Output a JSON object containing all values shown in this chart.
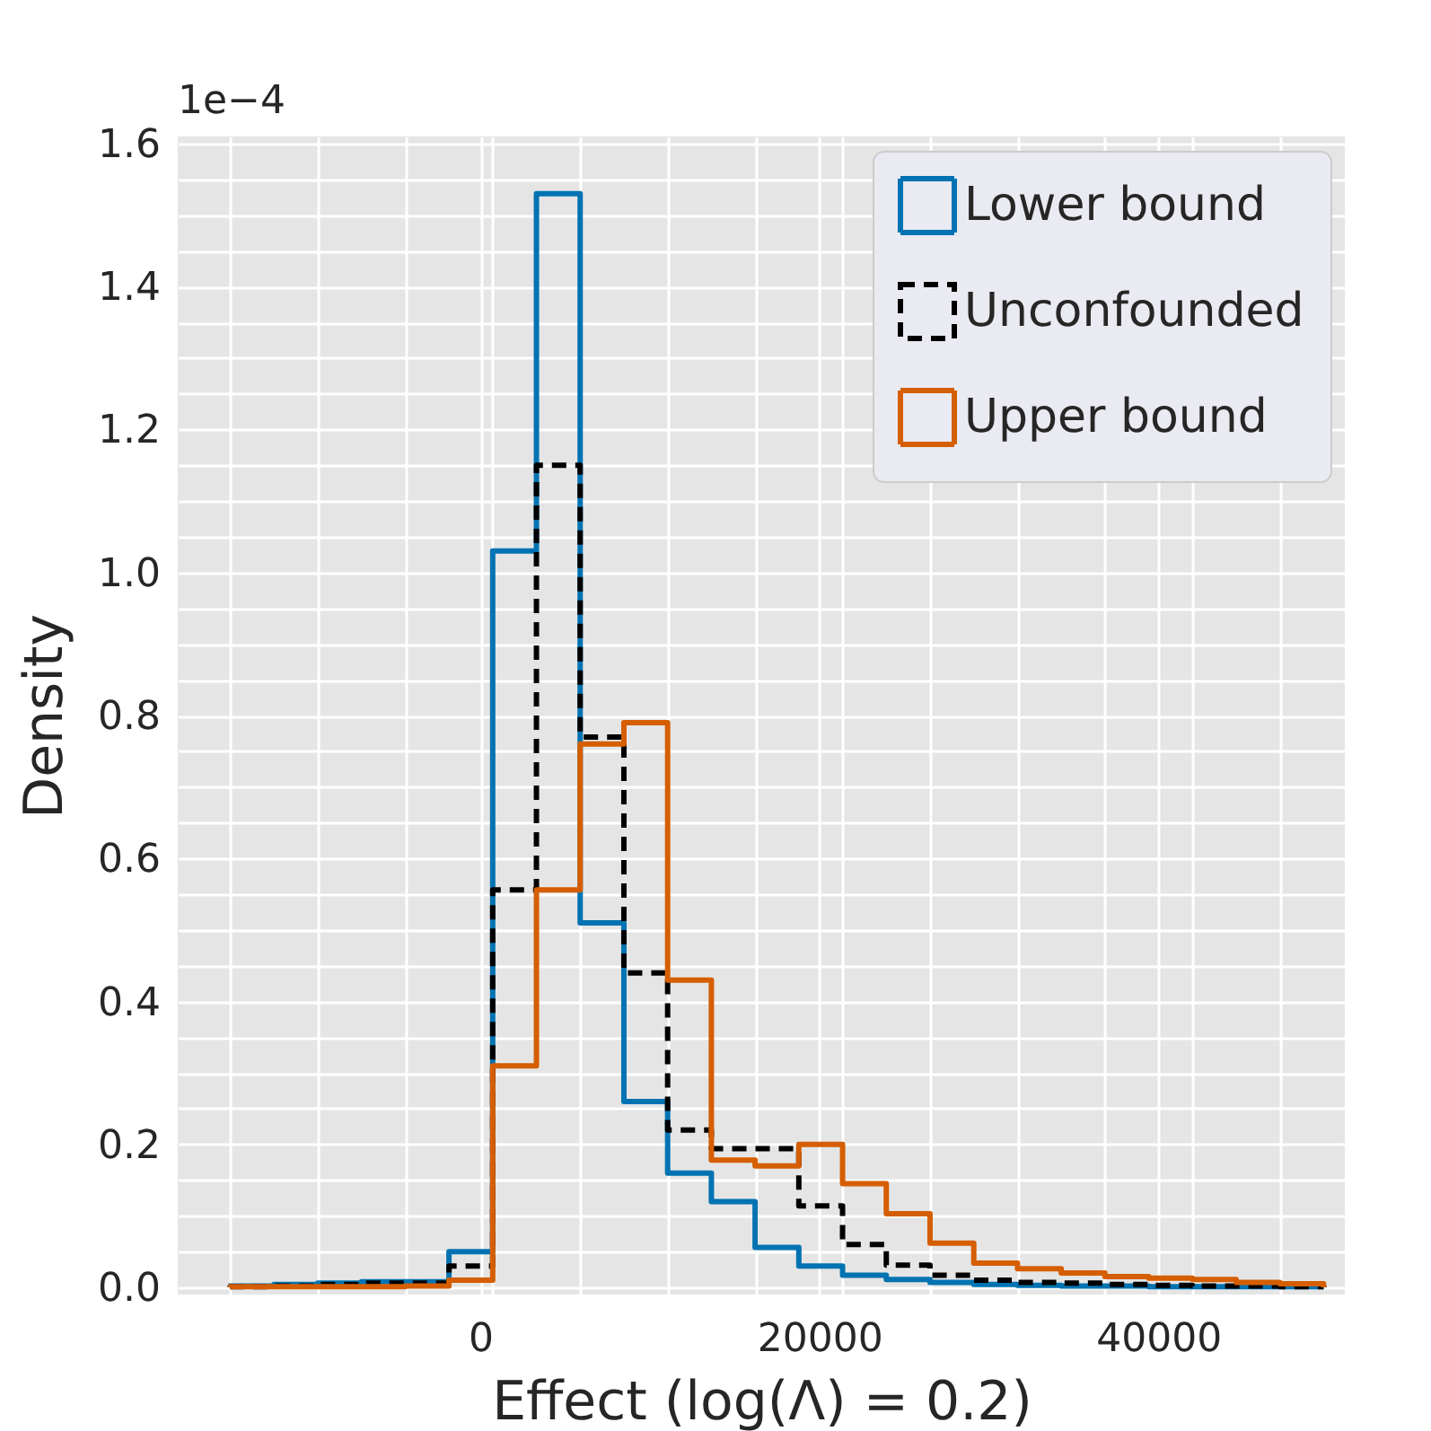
{
  "chart_data": {
    "type": "histogram",
    "xlabel": "Effect (log(Λ) = 0.2)",
    "ylabel": "Density",
    "annotations": [
      "1e−4"
    ],
    "bins": [
      -14750,
      -12170,
      -9590,
      -7010,
      -4430,
      -1850,
      730,
      3310,
      5890,
      8470,
      11050,
      13630,
      16210,
      18790,
      21370,
      23950,
      26530,
      29110,
      31690,
      34270,
      36850,
      39430,
      42010,
      44590,
      47170,
      49750
    ],
    "series": [
      {
        "name": "Lower bound",
        "color": "#0173b2",
        "line_style": "solid",
        "values": [
          0.002,
          0.004,
          0.006,
          0.008,
          0.008,
          0.05,
          1.03,
          1.53,
          0.51,
          0.26,
          0.16,
          0.12,
          0.056,
          0.03,
          0.017,
          0.011,
          0.007,
          0.004,
          0.003,
          0.002,
          0.002,
          0.001,
          0.001,
          0.001,
          0.001
        ]
      },
      {
        "name": "Unconfounded",
        "color": "#000000",
        "line_style": "dashed",
        "values": [
          0.001,
          0.002,
          0.004,
          0.006,
          0.006,
          0.03,
          0.556,
          1.15,
          0.77,
          0.44,
          0.22,
          0.194,
          0.194,
          0.114,
          0.06,
          0.031,
          0.017,
          0.01,
          0.007,
          0.006,
          0.004,
          0.003,
          0.002,
          0.002,
          0.001
        ]
      },
      {
        "name": "Upper bound",
        "color": "#d55e00",
        "line_style": "solid",
        "values": [
          0.001,
          0.001,
          0.001,
          0.001,
          0.002,
          0.01,
          0.31,
          0.556,
          0.76,
          0.79,
          0.43,
          0.178,
          0.17,
          0.2,
          0.145,
          0.103,
          0.062,
          0.034,
          0.026,
          0.02,
          0.015,
          0.013,
          0.011,
          0.007,
          0.005
        ]
      }
    ],
    "xlim": [
      -17850,
      51000
    ],
    "ylim": [
      -0.01,
      1.61
    ],
    "xticks": [
      0,
      20000,
      40000,
      {
        "value": -14750,
        "label": null
      },
      {
        "value": -9590,
        "label": null
      },
      {
        "value": -4430,
        "label": null
      },
      {
        "value": 730,
        "label": null
      },
      {
        "value": 5890,
        "label": null
      },
      {
        "value": 11050,
        "label": null
      },
      {
        "value": 16210,
        "label": null
      },
      {
        "value": 21370,
        "label": null
      },
      {
        "value": 26530,
        "label": null
      },
      {
        "value": 31690,
        "label": null
      },
      {
        "value": 36850,
        "label": null
      },
      {
        "value": 42010,
        "label": null
      },
      {
        "value": 47170,
        "label": null
      }
    ],
    "yticks": [
      {
        "value": 0,
        "label": "0.0"
      },
      {
        "value": 0.2,
        "label": "0.2"
      },
      {
        "value": 0.4,
        "label": "0.4"
      },
      {
        "value": 0.6,
        "label": "0.6"
      },
      {
        "value": 0.8,
        "label": "0.8"
      },
      {
        "value": 1.0,
        "label": "1.0"
      },
      {
        "value": 1.2,
        "label": "1.2"
      },
      {
        "value": 1.4,
        "label": "1.4"
      },
      {
        "value": 1.6,
        "label": "1.6"
      },
      {
        "value": 0.05,
        "label": null
      },
      {
        "value": 0.1,
        "label": null
      },
      {
        "value": 0.15,
        "label": null
      },
      {
        "value": 0.25,
        "label": null
      },
      {
        "value": 0.3,
        "label": null
      },
      {
        "value": 0.35,
        "label": null
      },
      {
        "value": 0.45,
        "label": null
      },
      {
        "value": 0.5,
        "label": null
      },
      {
        "value": 0.55,
        "label": null
      },
      {
        "value": 0.65,
        "label": null
      },
      {
        "value": 0.7,
        "label": null
      },
      {
        "value": 0.75,
        "label": null
      },
      {
        "value": 0.85,
        "label": null
      },
      {
        "value": 0.9,
        "label": null
      },
      {
        "value": 0.95,
        "label": null
      },
      {
        "value": 1.05,
        "label": null
      },
      {
        "value": 1.1,
        "label": null
      },
      {
        "value": 1.15,
        "label": null
      },
      {
        "value": 1.25,
        "label": null
      },
      {
        "value": 1.3,
        "label": null
      },
      {
        "value": 1.35,
        "label": null
      },
      {
        "value": 1.45,
        "label": null
      },
      {
        "value": 1.5,
        "label": null
      },
      {
        "value": 1.55,
        "label": null
      }
    ],
    "grid": true,
    "legend": "top right"
  }
}
